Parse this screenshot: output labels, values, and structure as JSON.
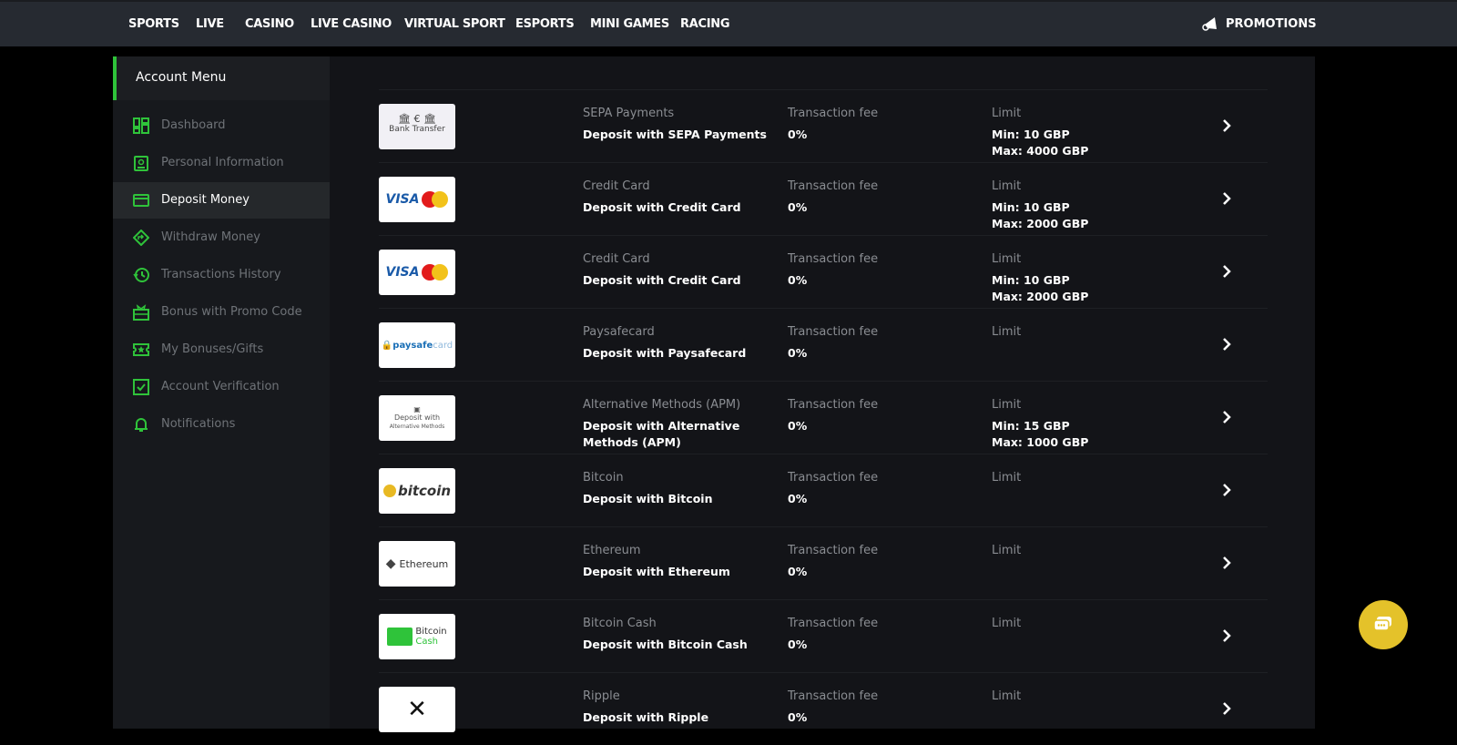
{
  "nav": {
    "items": [
      "SPORTS",
      "LIVE",
      "CASINO",
      "LIVE CASINO",
      "VIRTUAL SPORT",
      "ESPORTS",
      "MINI GAMES",
      "RACING"
    ],
    "promotions": "PROMOTIONS"
  },
  "sidebar": {
    "title": "Account Menu",
    "active": "Deposit Money",
    "accent": "#2fc33a",
    "items": [
      {
        "label": "Dashboard",
        "icon": "dashboard-icon"
      },
      {
        "label": "Personal Information",
        "icon": "id-badge-icon"
      },
      {
        "label": "Deposit Money",
        "icon": "credit-card-icon"
      },
      {
        "label": "Withdraw Money",
        "icon": "direction-arrow-icon"
      },
      {
        "label": "Transactions History",
        "icon": "history-icon"
      },
      {
        "label": "Bonus with Promo Code",
        "icon": "gift-icon"
      },
      {
        "label": "My Bonuses/Gifts",
        "icon": "ticket-star-icon"
      },
      {
        "label": "Account Verification",
        "icon": "checkbox-icon"
      },
      {
        "label": "Notifications",
        "icon": "bell-icon"
      }
    ]
  },
  "methods": [
    {
      "logo": "Bank Transfer",
      "name": "SEPA Payments",
      "action": "Deposit with SEPA Payments",
      "fee_label": "Transaction fee",
      "fee": "0%",
      "limit_label": "Limit",
      "min": "Min: 10 GBP",
      "max": "Max: 4000 GBP"
    },
    {
      "logo": "VISA MasterCard",
      "name": "Credit Card",
      "action": "Deposit with Credit Card",
      "fee_label": "Transaction fee",
      "fee": "0%",
      "limit_label": "Limit",
      "min": "Min: 10 GBP",
      "max": "Max: 2000 GBP"
    },
    {
      "logo": "VISA MasterCard",
      "name": "Credit Card",
      "action": "Deposit with Credit Card",
      "fee_label": "Transaction fee",
      "fee": "0%",
      "limit_label": "Limit",
      "min": "Min: 10 GBP",
      "max": "Max: 2000 GBP"
    },
    {
      "logo": "paysafecard",
      "name": "Paysafecard",
      "action": "Deposit with Paysafecard",
      "fee_label": "Transaction fee",
      "fee": "0%",
      "limit_label": "Limit"
    },
    {
      "logo": "Deposit with Alternative Methods",
      "name": "Alternative Methods (APM)",
      "action": "Deposit with Alternative Methods (APM)",
      "fee_label": "Transaction fee",
      "fee": "0%",
      "limit_label": "Limit",
      "min": "Min: 15 GBP",
      "max": "Max: 1000 GBP"
    },
    {
      "logo": "bitcoin",
      "name": "Bitcoin",
      "action": "Deposit with Bitcoin",
      "fee_label": "Transaction fee",
      "fee": "0%",
      "limit_label": "Limit"
    },
    {
      "logo": "Ethereum",
      "name": "Ethereum",
      "action": "Deposit with Ethereum",
      "fee_label": "Transaction fee",
      "fee": "0%",
      "limit_label": "Limit"
    },
    {
      "logo": "Bitcoin Cash",
      "name": "Bitcoin Cash",
      "action": "Deposit with Bitcoin Cash",
      "fee_label": "Transaction fee",
      "fee": "0%",
      "limit_label": "Limit"
    },
    {
      "logo": "Ripple",
      "name": "Ripple",
      "action": "Deposit with Ripple",
      "fee_label": "Transaction fee",
      "fee": "0%",
      "limit_label": "Limit"
    }
  ],
  "chat": {
    "icon": "chat-bubble-icon",
    "color": "#e4c22a"
  }
}
